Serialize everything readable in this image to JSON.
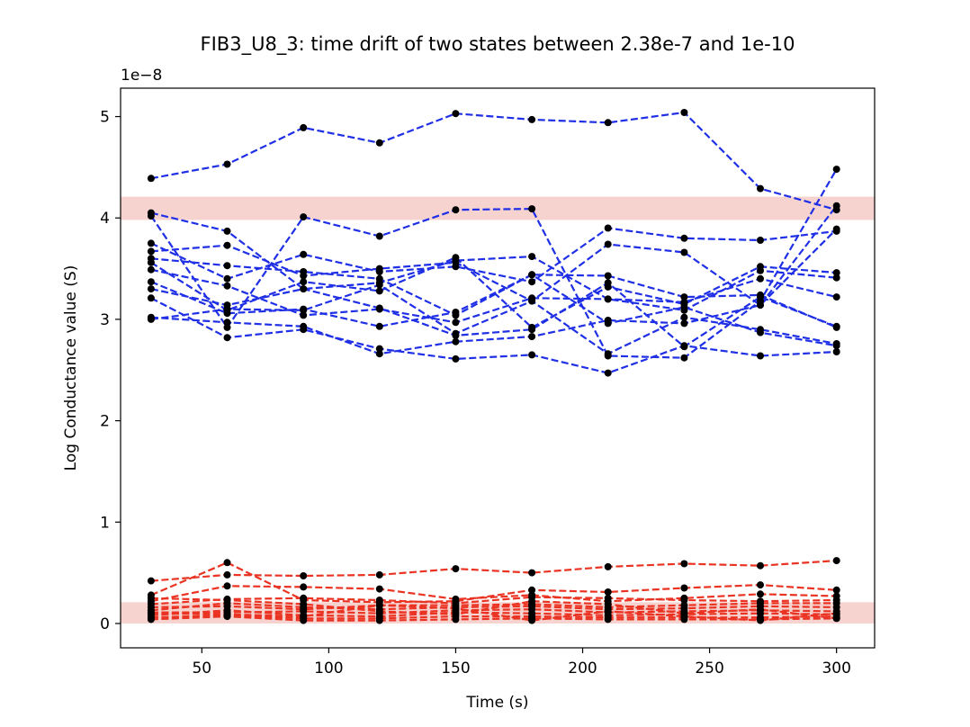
{
  "chart_data": {
    "type": "line",
    "title": "FIB3_U8_3: time drift of two states between 2.38e-7 and 1e-10",
    "xlabel": "Time (s)",
    "ylabel": "Log Conductance value (S)",
    "y_offset_label": "1e−8",
    "x_ticks": [
      50,
      100,
      150,
      200,
      250,
      300
    ],
    "y_ticks": [
      0,
      1,
      2,
      3,
      4,
      5
    ],
    "xlim": [
      18,
      315
    ],
    "ylim": [
      -0.24,
      5.28
    ],
    "y_scale_multiplier": 1e-08,
    "grid": false,
    "line_style": "dashed",
    "marker_color": "#000000",
    "bands": [
      {
        "y0": 3.98,
        "y1": 4.21,
        "color": "#f7d3d0"
      },
      {
        "y0": 0.0,
        "y1": 0.21,
        "color": "#f7d3d0"
      }
    ],
    "x": [
      30,
      60,
      90,
      120,
      150,
      180,
      210,
      240,
      270,
      300
    ],
    "series_colors": {
      "high": "#1f2fe6",
      "low": "#ea3322"
    },
    "high_state_series": [
      [
        4.39,
        4.53,
        4.89,
        4.74,
        5.03,
        4.97,
        4.94,
        5.04,
        4.29,
        4.08
      ],
      [
        4.05,
        3.87,
        3.3,
        3.36,
        3.58,
        3.62,
        3.2,
        3.09,
        3.48,
        3.41
      ],
      [
        4.02,
        2.92,
        4.01,
        3.82,
        4.08,
        4.09,
        2.64,
        2.62,
        3.18,
        4.48
      ],
      [
        3.75,
        3.4,
        3.64,
        3.47,
        3.52,
        3.37,
        3.9,
        3.8,
        3.78,
        3.87
      ],
      [
        3.67,
        3.73,
        3.43,
        3.5,
        3.56,
        3.18,
        3.74,
        3.66,
        3.14,
        4.12
      ],
      [
        3.6,
        3.53,
        3.47,
        3.4,
        3.04,
        3.44,
        3.43,
        3.22,
        3.24,
        2.92
      ],
      [
        3.56,
        3.09,
        3.37,
        3.28,
        3.61,
        2.92,
        3.32,
        3.15,
        3.52,
        3.46
      ],
      [
        3.49,
        3.33,
        3.04,
        3.1,
        2.97,
        3.21,
        3.2,
        3.17,
        3.4,
        3.22
      ],
      [
        3.37,
        3.06,
        3.1,
        2.93,
        3.07,
        3.44,
        2.96,
        3.12,
        2.87,
        2.74
      ],
      [
        3.3,
        3.14,
        3.3,
        3.11,
        2.84,
        2.9,
        3.36,
        2.73,
        3.22,
        2.93
      ],
      [
        3.21,
        2.82,
        2.9,
        2.71,
        2.61,
        2.65,
        2.47,
        2.74,
        2.64,
        2.68
      ],
      [
        3.02,
        2.97,
        2.93,
        2.66,
        2.78,
        2.83,
        2.99,
        2.96,
        3.14,
        3.89
      ],
      [
        3.0,
        3.1,
        3.09,
        3.34,
        2.86,
        3.18,
        2.66,
        3.02,
        2.9,
        2.76
      ]
    ],
    "low_state_series": [
      [
        0.42,
        0.48,
        0.47,
        0.48,
        0.54,
        0.5,
        0.56,
        0.59,
        0.57,
        0.62
      ],
      [
        0.28,
        0.6,
        0.23,
        0.21,
        0.22,
        0.33,
        0.31,
        0.35,
        0.38,
        0.33
      ],
      [
        0.22,
        0.37,
        0.36,
        0.34,
        0.24,
        0.28,
        0.22,
        0.25,
        0.29,
        0.27
      ],
      [
        0.19,
        0.24,
        0.25,
        0.23,
        0.2,
        0.26,
        0.25,
        0.23,
        0.22,
        0.23
      ],
      [
        0.16,
        0.17,
        0.14,
        0.18,
        0.18,
        0.19,
        0.16,
        0.18,
        0.2,
        0.2
      ],
      [
        0.13,
        0.2,
        0.16,
        0.14,
        0.16,
        0.17,
        0.14,
        0.15,
        0.17,
        0.16
      ],
      [
        0.11,
        0.11,
        0.12,
        0.1,
        0.13,
        0.14,
        0.11,
        0.12,
        0.13,
        0.12
      ],
      [
        0.08,
        0.13,
        0.08,
        0.07,
        0.11,
        0.1,
        0.08,
        0.09,
        0.1,
        0.09
      ],
      [
        0.06,
        0.08,
        0.05,
        0.05,
        0.07,
        0.07,
        0.06,
        0.06,
        0.06,
        0.07
      ],
      [
        0.04,
        0.07,
        0.03,
        0.03,
        0.04,
        0.05,
        0.04,
        0.04,
        0.04,
        0.05
      ],
      [
        0.25,
        0.23,
        0.19,
        0.12,
        0.09,
        0.22,
        0.19,
        0.1,
        0.14,
        0.05
      ],
      [
        0.1,
        0.09,
        0.07,
        0.18,
        0.15,
        0.03,
        0.12,
        0.07,
        0.03,
        0.1
      ]
    ]
  }
}
